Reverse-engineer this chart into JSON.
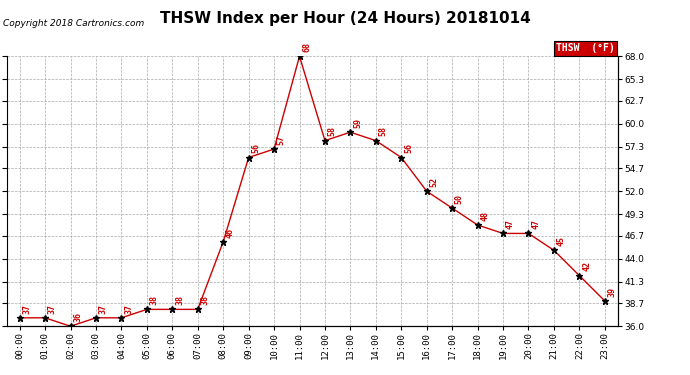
{
  "title": "THSW Index per Hour (24 Hours) 20181014",
  "copyright": "Copyright 2018 Cartronics.com",
  "legend_label": "THSW  (°F)",
  "hours": [
    0,
    1,
    2,
    3,
    4,
    5,
    6,
    7,
    8,
    9,
    10,
    11,
    12,
    13,
    14,
    15,
    16,
    17,
    18,
    19,
    20,
    21,
    22,
    23
  ],
  "values": [
    37,
    37,
    36,
    37,
    37,
    38,
    38,
    38,
    46,
    56,
    57,
    68,
    58,
    59,
    58,
    56,
    52,
    50,
    48,
    47,
    47,
    45,
    42,
    39
  ],
  "ylim": [
    36.0,
    68.0
  ],
  "yticks": [
    36.0,
    38.7,
    41.3,
    44.0,
    46.7,
    49.3,
    52.0,
    54.7,
    57.3,
    60.0,
    62.7,
    65.3,
    68.0
  ],
  "line_color": "#cc0000",
  "marker_color": "#000000",
  "label_color": "#cc0000",
  "bg_color": "#ffffff",
  "grid_color": "#aaaaaa",
  "title_fontsize": 11,
  "copyright_fontsize": 6.5,
  "label_fontsize": 6,
  "tick_fontsize": 6.5,
  "legend_bg": "#cc0000",
  "legend_fg": "#ffffff"
}
